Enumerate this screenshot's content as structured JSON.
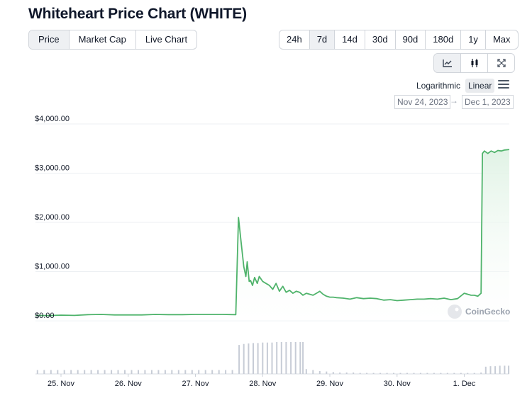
{
  "page": {
    "title": "Whiteheart Price Chart (WHITE)"
  },
  "metric_tabs": [
    {
      "label": "Price",
      "active": true
    },
    {
      "label": "Market Cap",
      "active": false
    },
    {
      "label": "Live Chart",
      "active": false
    }
  ],
  "range_tabs": [
    {
      "label": "24h",
      "active": false
    },
    {
      "label": "7d",
      "active": true
    },
    {
      "label": "14d",
      "active": false
    },
    {
      "label": "30d",
      "active": false
    },
    {
      "label": "90d",
      "active": false
    },
    {
      "label": "180d",
      "active": false
    },
    {
      "label": "1y",
      "active": false
    },
    {
      "label": "Max",
      "active": false
    }
  ],
  "view_tabs": [
    {
      "icon": "line-chart-icon",
      "active": true
    },
    {
      "icon": "candlestick-icon",
      "active": false
    },
    {
      "icon": "expand-icon",
      "active": false
    }
  ],
  "scale": {
    "log_label": "Logarithmic",
    "linear_label": "Linear",
    "selected": "Linear"
  },
  "date_range": {
    "from": "Nov 24, 2023",
    "arrow": "→",
    "to": "Dec 1, 2023"
  },
  "watermark": {
    "text": "CoinGecko"
  },
  "colors": {
    "line": "#4fb36b",
    "area_top": "#dff2e4",
    "volume": "#c7ccd6",
    "grid": "#eceff3"
  },
  "chart_data": {
    "type": "area",
    "x_unit": "days",
    "xlim": [
      24.62,
      31.67
    ],
    "ylim": [
      0,
      4000
    ],
    "y_ticks": [
      0,
      1000,
      2000,
      3000,
      4000
    ],
    "y_tick_labels": [
      "$0.00",
      "$1,000.00",
      "$2,000.00",
      "$3,000.00",
      "$4,000.00"
    ],
    "x_ticks": [
      25,
      26,
      27,
      28,
      29,
      30,
      31
    ],
    "x_tick_labels": [
      "25. Nov",
      "26. Nov",
      "27. Nov",
      "28. Nov",
      "29. Nov",
      "30. Nov",
      "1. Dec"
    ],
    "grid": true,
    "series": [
      {
        "x": [
          24.62,
          24.8,
          25.0,
          25.2,
          25.4,
          25.6,
          25.8,
          26.0,
          26.2,
          26.4,
          26.6,
          26.8,
          27.0,
          27.2,
          27.4,
          27.6,
          27.64,
          27.68,
          27.72,
          27.75,
          27.77,
          27.8,
          27.82,
          27.85,
          27.88,
          27.92,
          27.95,
          28.0,
          28.05,
          28.1,
          28.15,
          28.2,
          28.25,
          28.3,
          28.35,
          28.4,
          28.45,
          28.5,
          28.55,
          28.6,
          28.65,
          28.7,
          28.75,
          28.8,
          28.85,
          28.9,
          28.95,
          29.0,
          29.05,
          29.1,
          29.2,
          29.3,
          29.4,
          29.5,
          29.6,
          29.7,
          29.8,
          29.9,
          30.0,
          30.1,
          30.2,
          30.3,
          30.4,
          30.5,
          30.6,
          30.7,
          30.8,
          30.9,
          31.0,
          31.05,
          31.1,
          31.15,
          31.2,
          31.25,
          31.27,
          31.3,
          31.35,
          31.4,
          31.45,
          31.5,
          31.55,
          31.6,
          31.67
        ],
        "y": [
          110,
          105,
          115,
          110,
          125,
          130,
          120,
          120,
          120,
          130,
          125,
          125,
          130,
          130,
          130,
          125,
          2100,
          1600,
          1100,
          900,
          1200,
          800,
          820,
          720,
          880,
          760,
          900,
          800,
          760,
          720,
          640,
          760,
          600,
          700,
          580,
          620,
          560,
          600,
          580,
          520,
          560,
          540,
          520,
          560,
          600,
          540,
          500,
          480,
          480,
          470,
          460,
          440,
          470,
          450,
          460,
          450,
          420,
          430,
          410,
          420,
          430,
          440,
          440,
          450,
          440,
          460,
          430,
          450,
          560,
          540,
          520,
          520,
          500,
          560,
          3400,
          3450,
          3400,
          3450,
          3420,
          3460,
          3450,
          3470,
          3480
        ]
      }
    ],
    "volume": {
      "x": [
        24.65,
        24.75,
        24.85,
        24.95,
        25.05,
        25.15,
        25.25,
        25.35,
        25.45,
        25.55,
        25.65,
        25.75,
        25.85,
        25.95,
        26.05,
        26.15,
        26.25,
        26.35,
        26.45,
        26.55,
        26.65,
        26.75,
        26.85,
        26.95,
        27.05,
        27.15,
        27.25,
        27.35,
        27.45,
        27.55,
        27.65,
        27.72,
        27.79,
        27.86,
        27.93,
        28.0,
        28.07,
        28.14,
        28.21,
        28.28,
        28.35,
        28.42,
        28.49,
        28.56,
        28.6,
        28.65,
        28.75,
        28.85,
        28.95,
        29.05,
        29.15,
        29.25,
        29.35,
        29.45,
        29.55,
        29.65,
        29.75,
        29.85,
        29.95,
        30.05,
        30.15,
        30.25,
        30.35,
        30.45,
        30.55,
        30.65,
        30.75,
        30.85,
        30.95,
        31.05,
        31.15,
        31.25,
        31.32,
        31.39,
        31.46,
        31.53,
        31.6,
        31.66
      ],
      "values": [
        8,
        8,
        8,
        8,
        8,
        8,
        8,
        8,
        8,
        8,
        8,
        8,
        8,
        8,
        8,
        8,
        8,
        8,
        8,
        8,
        8,
        8,
        8,
        8,
        8,
        8,
        8,
        8,
        8,
        8,
        60,
        62,
        63,
        64,
        64,
        65,
        65,
        65,
        66,
        66,
        66,
        66,
        66,
        66,
        66,
        10,
        8,
        6,
        5,
        4,
        3,
        3,
        3,
        2,
        2,
        2,
        2,
        2,
        2,
        2,
        2,
        2,
        2,
        2,
        2,
        2,
        2,
        2,
        2,
        2,
        2,
        3,
        15,
        16,
        16,
        17,
        17,
        17
      ]
    }
  }
}
